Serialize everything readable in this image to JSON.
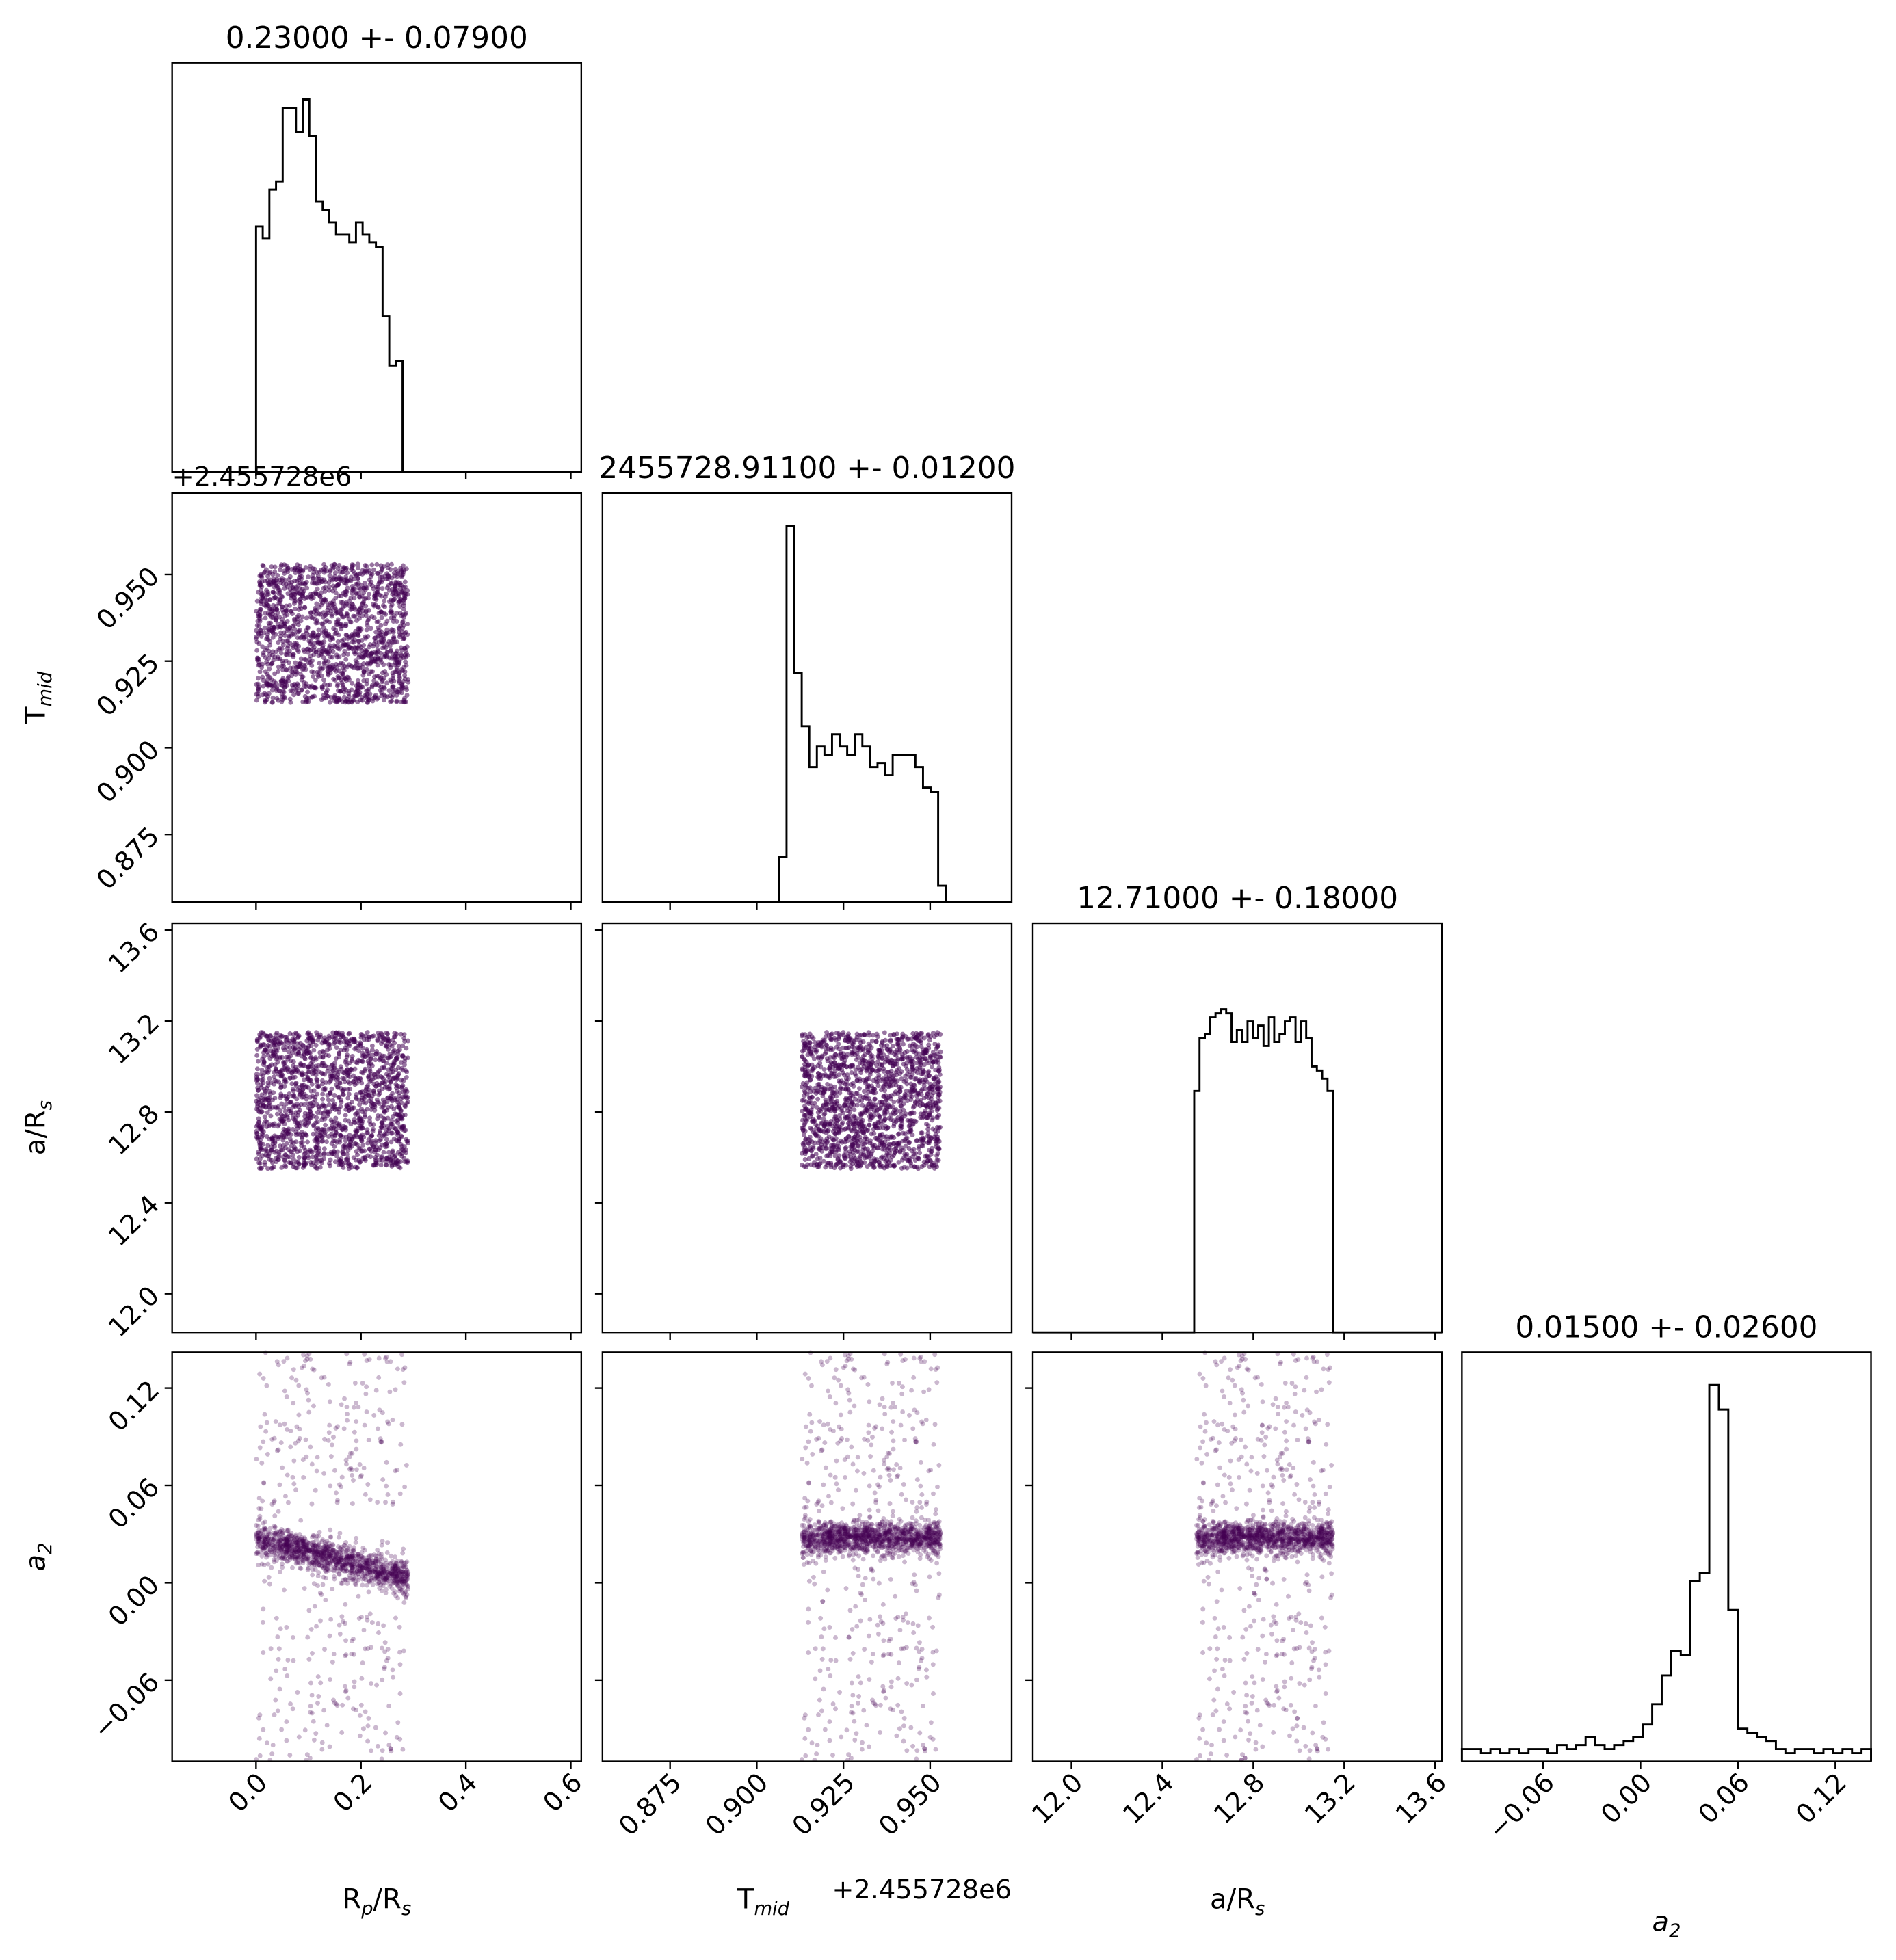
{
  "chart_data": {
    "type": "corner",
    "params": [
      {
        "key": "rp",
        "label_base": "R",
        "label_sub": "p",
        "label_tail": "/R",
        "label_sub2": "s",
        "range": [
          -0.16,
          0.62
        ],
        "ticks": [
          "0.0",
          "0.2",
          "0.4",
          "0.6"
        ],
        "tick_values": [
          0.0,
          0.2,
          0.4,
          0.6
        ],
        "offset": "",
        "title": "0.23000 +- 0.07900"
      },
      {
        "key": "tmid",
        "label_base": "T",
        "label_sub": "mid",
        "label_tail": "",
        "label_sub2": "",
        "range": [
          0.8555,
          0.9735
        ],
        "ticks": [
          "0.875",
          "0.900",
          "0.925",
          "0.950"
        ],
        "tick_values": [
          0.875,
          0.9,
          0.925,
          0.95
        ],
        "offset": "+2.455728e6",
        "title": "2455728.91100 +- 0.01200"
      },
      {
        "key": "ars",
        "label_base": "a/R",
        "label_sub": "s",
        "label_tail": "",
        "label_sub2": "",
        "range": [
          11.83,
          13.63
        ],
        "ticks": [
          "12.0",
          "12.4",
          "12.8",
          "13.2",
          "13.6"
        ],
        "tick_values": [
          12.0,
          12.4,
          12.8,
          13.2,
          13.6
        ],
        "offset": "",
        "title": "12.71000 +- 0.18000"
      },
      {
        "key": "a2",
        "label_base": "a",
        "label_sub": "2",
        "label_tail": "",
        "label_sub2": "",
        "label_italic": true,
        "range": [
          -0.11,
          0.142
        ],
        "ticks": [
          "−0.06",
          "0.00",
          "0.06",
          "0.12"
        ],
        "tick_values": [
          -0.06,
          0.0,
          0.06,
          0.12
        ],
        "offset": "",
        "title": "0.01500 +- 0.02600"
      }
    ],
    "histograms": [
      {
        "param": "rp",
        "bin_range": [
          0.0,
          0.292
        ],
        "counts": [
          0.6,
          0.6,
          0.57,
          0.57,
          0.69,
          0.69,
          0.71,
          0.71,
          0.89,
          0.89,
          0.89,
          0.89,
          0.83,
          0.83,
          0.91,
          0.91,
          0.82,
          0.82,
          0.66,
          0.66,
          0.64,
          0.64,
          0.61,
          0.61,
          0.58,
          0.58,
          0.58,
          0.58,
          0.56,
          0.56,
          0.61,
          0.61,
          0.58,
          0.58,
          0.56,
          0.56,
          0.55,
          0.55,
          0.38,
          0.38,
          0.26,
          0.26,
          0.27,
          0.27,
          0.0,
          0.0
        ]
      },
      {
        "param": "tmid",
        "bin_range": [
          0.9064,
          0.9545
        ],
        "counts": [
          0.11,
          0.92,
          0.56,
          0.43,
          0.33,
          0.38,
          0.36,
          0.41,
          0.38,
          0.36,
          0.41,
          0.38,
          0.33,
          0.34,
          0.31,
          0.36,
          0.36,
          0.36,
          0.33,
          0.28,
          0.27,
          0.04
        ]
      },
      {
        "param": "ars",
        "bin_range": [
          12.54,
          13.15
        ],
        "counts": [
          0.59,
          0.72,
          0.73,
          0.77,
          0.78,
          0.79,
          0.78,
          0.71,
          0.74,
          0.71,
          0.76,
          0.72,
          0.75,
          0.7,
          0.77,
          0.71,
          0.73,
          0.76,
          0.77,
          0.71,
          0.76,
          0.72,
          0.65,
          0.64,
          0.62,
          0.59
        ]
      },
      {
        "param": "a2",
        "bin_range": [
          -0.11,
          0.142
        ],
        "counts": [
          0.03,
          0.03,
          0.02,
          0.03,
          0.02,
          0.03,
          0.02,
          0.03,
          0.03,
          0.02,
          0.04,
          0.03,
          0.04,
          0.06,
          0.04,
          0.03,
          0.04,
          0.05,
          0.06,
          0.09,
          0.14,
          0.21,
          0.27,
          0.26,
          0.44,
          0.46,
          0.92,
          0.86,
          0.37,
          0.08,
          0.07,
          0.06,
          0.05,
          0.03,
          0.02,
          0.03,
          0.03,
          0.02,
          0.03,
          0.02,
          0.03,
          0.02,
          0.03
        ]
      }
    ],
    "scatter_panels": [
      {
        "x": "rp",
        "y": "tmid"
      },
      {
        "x": "rp",
        "y": "ars"
      },
      {
        "x": "tmid",
        "y": "ars"
      },
      {
        "x": "rp",
        "y": "a2"
      },
      {
        "x": "tmid",
        "y": "a2"
      },
      {
        "x": "ars",
        "y": "a2"
      }
    ],
    "samples": {
      "rp": {
        "dist": "uniform",
        "range": [
          0.0,
          0.29
        ]
      },
      "tmid": {
        "dist": "uniform",
        "range": [
          0.913,
          0.953
        ]
      },
      "ars": {
        "dist": "uniform",
        "range": [
          12.55,
          13.15
        ]
      },
      "a2": {
        "dist": "core+halo",
        "core_center": 0.028,
        "core_width": 0.012,
        "range": [
          -0.11,
          0.142
        ]
      }
    },
    "colors": {
      "hist": "#000000",
      "scatter": "#440154"
    },
    "grid": false
  }
}
